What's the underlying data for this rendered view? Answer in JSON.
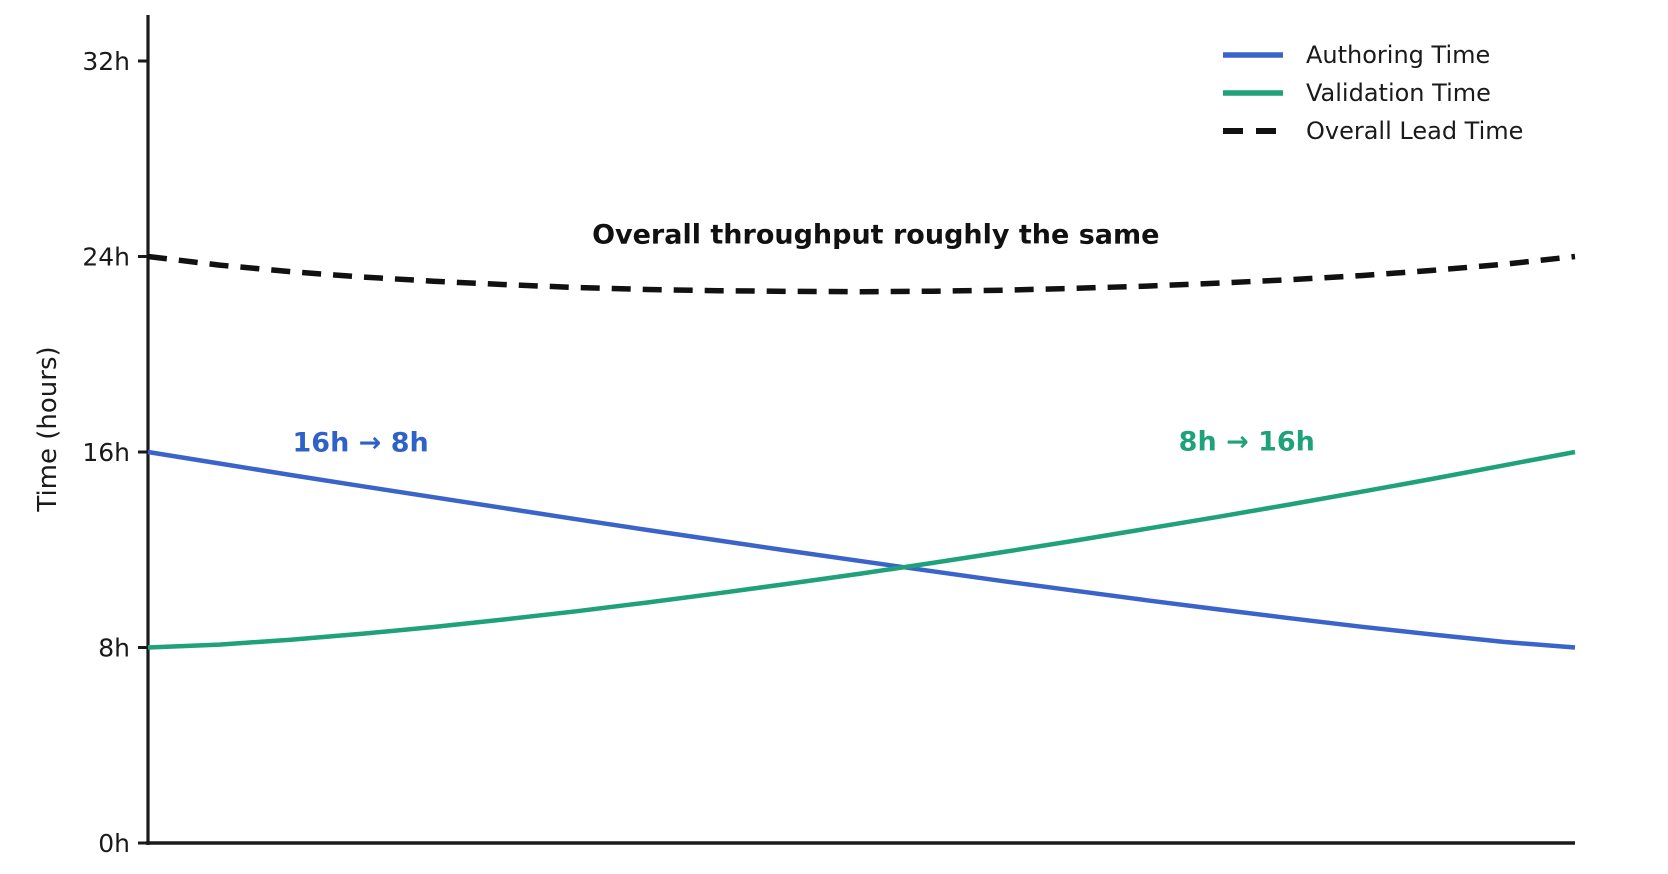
{
  "figure": {
    "background": "#ffffff",
    "axis_color": "#1a1a1a"
  },
  "chart_data": {
    "type": "line",
    "title": "",
    "xlabel": "",
    "ylabel": "Time (hours)",
    "grid": false,
    "legend_position": "upper right",
    "legend_frame": false,
    "ylim": [
      0,
      34
    ],
    "yticks": [
      {
        "value": 0,
        "label": "0h"
      },
      {
        "value": 8,
        "label": "8h"
      },
      {
        "value": 16,
        "label": "16h"
      },
      {
        "value": 24,
        "label": "24h"
      },
      {
        "value": 32,
        "label": "32h"
      }
    ],
    "x_tick_labels": [],
    "x": [
      0,
      0.05,
      0.1,
      0.15,
      0.2,
      0.25,
      0.3,
      0.35,
      0.4,
      0.45,
      0.5,
      0.55,
      0.6,
      0.65,
      0.7,
      0.75,
      0.8,
      0.85,
      0.9,
      0.95,
      1
    ],
    "series": [
      {
        "name": "Authoring Time",
        "color": "#3a64c9",
        "style": "solid",
        "start_value_h": 16,
        "end_value_h": 8,
        "values": [
          16,
          15.53,
          15.06,
          14.6,
          14.15,
          13.7,
          13.25,
          12.81,
          12.38,
          11.95,
          11.53,
          11.12,
          10.71,
          10.32,
          9.93,
          9.56,
          9.2,
          8.85,
          8.53,
          8.23,
          8
        ]
      },
      {
        "name": "Validation Time",
        "color": "#1fa179",
        "style": "solid",
        "start_value_h": 8,
        "end_value_h": 16,
        "values": [
          8,
          8.12,
          8.32,
          8.56,
          8.84,
          9.15,
          9.48,
          9.84,
          10.22,
          10.62,
          11.03,
          11.46,
          11.91,
          12.38,
          12.86,
          13.35,
          13.85,
          14.37,
          14.9,
          15.45,
          16
        ]
      },
      {
        "name": "Overall Lead Time",
        "color": "#111111",
        "style": "dashed",
        "start_value_h": 24,
        "end_value_h": 24,
        "values": [
          24,
          23.65,
          23.38,
          23.16,
          22.99,
          22.85,
          22.73,
          22.65,
          22.6,
          22.57,
          22.56,
          22.58,
          22.62,
          22.7,
          22.79,
          22.91,
          23.05,
          23.22,
          23.43,
          23.68,
          24
        ]
      }
    ],
    "annotations": [
      {
        "text": "Overall throughput roughly the same",
        "color": "#111111",
        "x": 0.51,
        "y": 24.9
      },
      {
        "text": "16h → 8h",
        "color": "#2f62c8",
        "x": 0.149,
        "y": 16.35
      },
      {
        "text": "8h → 16h",
        "color": "#1fa179",
        "x": 0.77,
        "y": 16.4
      }
    ]
  }
}
